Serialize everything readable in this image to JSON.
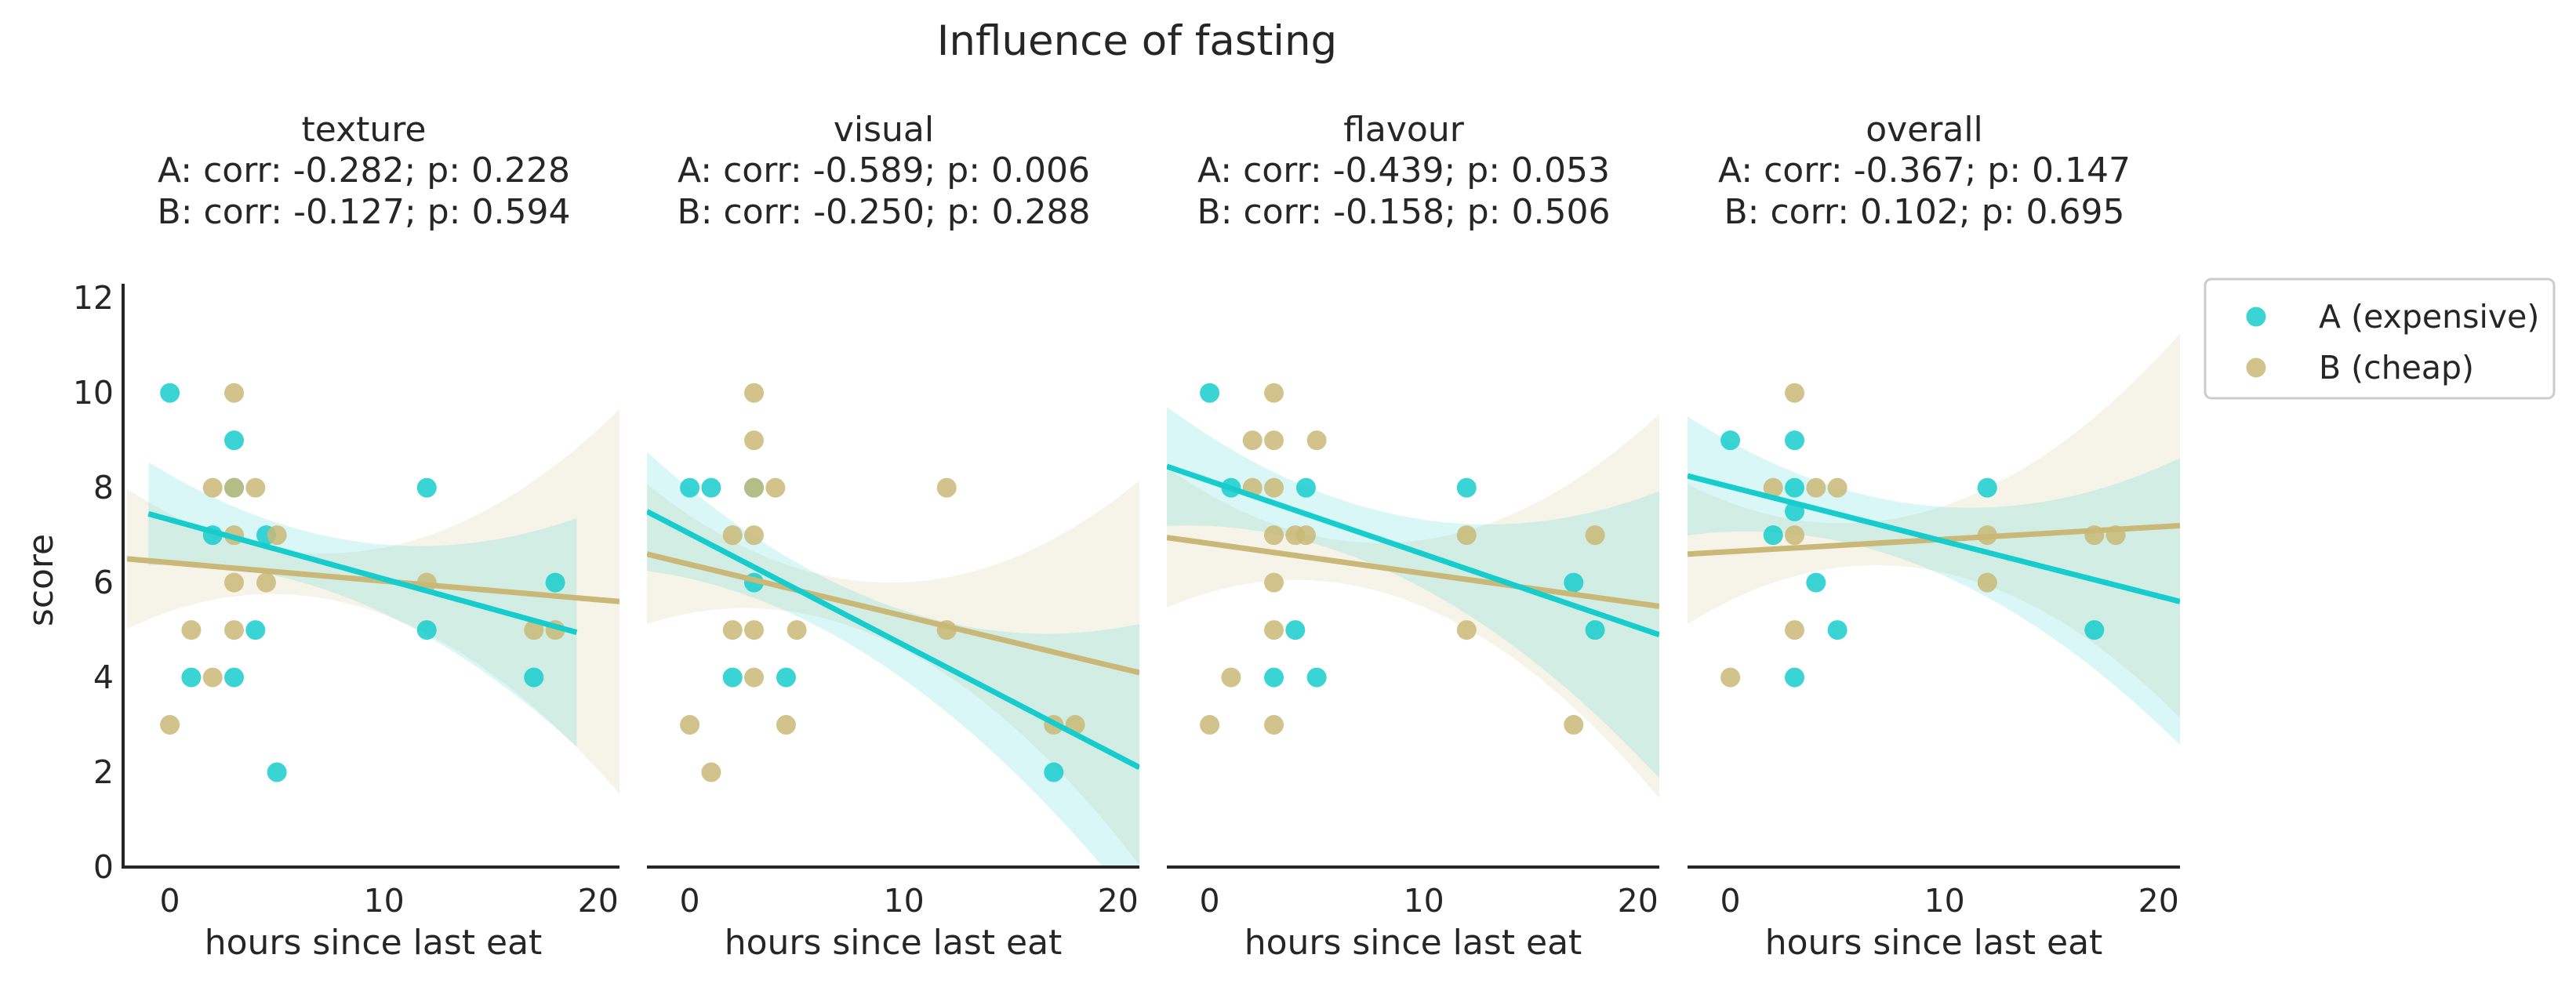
{
  "chart_data": {
    "type": "scatter",
    "title": "Influence of fasting",
    "xlabel": "hours since last eat",
    "ylabel": "score",
    "xlim": [
      -2,
      21
    ],
    "ylim": [
      0,
      12.5
    ],
    "xticks": [
      0,
      10,
      20
    ],
    "yticks": [
      0,
      2,
      4,
      6,
      8,
      10,
      12
    ],
    "grid": false,
    "legend_position": "top-right (outside)",
    "series": [
      {
        "name": "A (expensive)",
        "color": "#17cccc"
      },
      {
        "name": "B (cheap)",
        "color": "#c9b877"
      }
    ],
    "panels": [
      {
        "title": "texture",
        "stats": [
          "A: corr: -0.282; p: 0.228",
          "B: corr: -0.127; p: 0.594"
        ],
        "points": {
          "A": [
            [
              0,
              10
            ],
            [
              1,
              4
            ],
            [
              2,
              7
            ],
            [
              3,
              9
            ],
            [
              3,
              8
            ],
            [
              3,
              4
            ],
            [
              4,
              5
            ],
            [
              5,
              2
            ],
            [
              4.5,
              7
            ],
            [
              12,
              8
            ],
            [
              12,
              5
            ],
            [
              17,
              4
            ],
            [
              18,
              6
            ]
          ],
          "B": [
            [
              0,
              3
            ],
            [
              1,
              5
            ],
            [
              2,
              8
            ],
            [
              2,
              4
            ],
            [
              3,
              10
            ],
            [
              3,
              8
            ],
            [
              3,
              7
            ],
            [
              3,
              6
            ],
            [
              3,
              5
            ],
            [
              4,
              8
            ],
            [
              4.5,
              6
            ],
            [
              5,
              7
            ],
            [
              12,
              6
            ],
            [
              17,
              5
            ],
            [
              18,
              5
            ]
          ]
        },
        "fit": {
          "A": {
            "x": [
              -1,
              19
            ],
            "y": [
              7.45,
              4.95
            ]
          },
          "B": {
            "x": [
              -2,
              21
            ],
            "y": [
              6.5,
              5.6
            ]
          }
        }
      },
      {
        "title": "visual",
        "stats": [
          "A: corr: -0.589; p: 0.006",
          "B: corr: -0.250; p: 0.288"
        ],
        "points": {
          "A": [
            [
              0,
              8
            ],
            [
              1,
              8
            ],
            [
              2,
              4
            ],
            [
              3,
              8
            ],
            [
              3,
              6
            ],
            [
              4.5,
              4
            ],
            [
              17,
              2
            ]
          ],
          "B": [
            [
              0,
              3
            ],
            [
              1,
              2
            ],
            [
              2,
              7
            ],
            [
              2,
              5
            ],
            [
              3,
              10
            ],
            [
              3,
              9
            ],
            [
              3,
              8
            ],
            [
              3,
              7
            ],
            [
              3,
              5
            ],
            [
              3,
              4
            ],
            [
              4,
              8
            ],
            [
              4.5,
              3
            ],
            [
              5,
              5
            ],
            [
              12,
              8
            ],
            [
              12,
              5
            ],
            [
              17,
              3
            ],
            [
              18,
              3
            ]
          ]
        },
        "fit": {
          "A": {
            "x": [
              -2,
              21
            ],
            "y": [
              7.5,
              2.1
            ]
          },
          "B": {
            "x": [
              -2,
              21
            ],
            "y": [
              6.6,
              4.1
            ]
          }
        }
      },
      {
        "title": "flavour",
        "stats": [
          "A: corr: -0.439; p: 0.053",
          "B: corr: -0.158; p: 0.506"
        ],
        "points": {
          "A": [
            [
              0,
              10
            ],
            [
              1,
              8
            ],
            [
              3,
              4
            ],
            [
              4,
              5
            ],
            [
              4.5,
              8
            ],
            [
              5,
              4
            ],
            [
              12,
              8
            ],
            [
              17,
              6
            ],
            [
              18,
              5
            ]
          ],
          "B": [
            [
              0,
              3
            ],
            [
              1,
              4
            ],
            [
              2,
              9
            ],
            [
              2,
              8
            ],
            [
              3,
              10
            ],
            [
              3,
              9
            ],
            [
              3,
              8
            ],
            [
              3,
              7
            ],
            [
              3,
              6
            ],
            [
              3,
              5
            ],
            [
              3,
              3
            ],
            [
              4,
              7
            ],
            [
              4.5,
              7
            ],
            [
              5,
              9
            ],
            [
              12,
              7
            ],
            [
              12,
              5
            ],
            [
              17,
              3
            ],
            [
              18,
              7
            ]
          ]
        },
        "fit": {
          "A": {
            "x": [
              -2,
              21
            ],
            "y": [
              8.45,
              4.9
            ]
          },
          "B": {
            "x": [
              -2,
              21
            ],
            "y": [
              6.95,
              5.5
            ]
          }
        }
      },
      {
        "title": "overall",
        "stats": [
          "A: corr: -0.367; p: 0.147",
          "B: corr: 0.102; p: 0.695"
        ],
        "points": {
          "A": [
            [
              0,
              9
            ],
            [
              2,
              7
            ],
            [
              3,
              9
            ],
            [
              3,
              8
            ],
            [
              3,
              7.5
            ],
            [
              3,
              4
            ],
            [
              4,
              6
            ],
            [
              5,
              5
            ],
            [
              12,
              8
            ],
            [
              17,
              5
            ]
          ],
          "B": [
            [
              0,
              4
            ],
            [
              2,
              8
            ],
            [
              3,
              10
            ],
            [
              3,
              7
            ],
            [
              3,
              5
            ],
            [
              4,
              8
            ],
            [
              5,
              8
            ],
            [
              12,
              7
            ],
            [
              12,
              6
            ],
            [
              17,
              7
            ],
            [
              18,
              7
            ]
          ]
        },
        "fit": {
          "A": {
            "x": [
              -2,
              21
            ],
            "y": [
              8.25,
              5.6
            ]
          },
          "B": {
            "x": [
              -2,
              21
            ],
            "y": [
              6.6,
              7.2
            ]
          }
        }
      }
    ]
  }
}
